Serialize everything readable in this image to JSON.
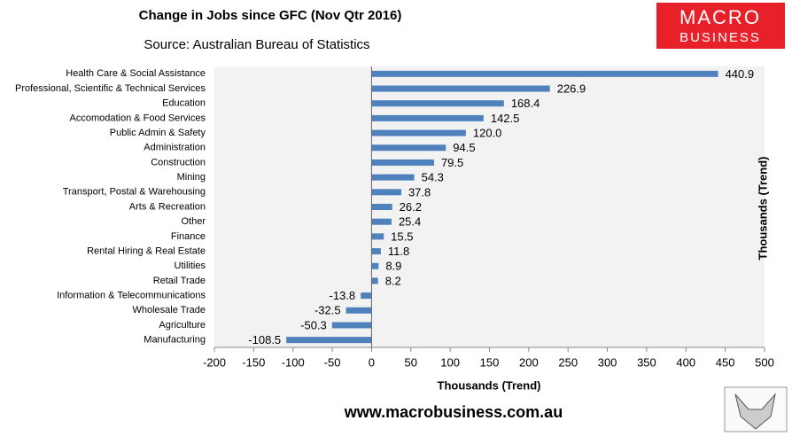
{
  "chart_data": {
    "type": "hbar",
    "title": "Change in Jobs since GFC (Nov Qtr 2016)",
    "subtitle": "Source: Australian Bureau of Statistics",
    "x_label": "Thousands (Trend)",
    "y_label": "Thousands (Trend)",
    "categories": [
      "Health Care & Social Assistance",
      "Professional, Scientific & Technical Services",
      "Education",
      "Accomodation & Food Services",
      "Public Admin & Safety",
      "Administration",
      "Construction",
      "Mining",
      "Transport, Postal & Warehousing",
      "Arts & Recreation",
      "Other",
      "Finance",
      "Rental Hiring & Real Estate",
      "Utilities",
      "Retail Trade",
      "Information & Telecommunications",
      "Wholesale Trade",
      "Agriculture",
      "Manufacturing"
    ],
    "values": [
      440.9,
      226.9,
      168.4,
      142.5,
      120.0,
      94.5,
      79.5,
      54.3,
      37.8,
      26.2,
      25.4,
      15.5,
      11.8,
      8.9,
      8.2,
      -13.8,
      -32.5,
      -50.3,
      -108.5
    ],
    "value_labels": [
      "440.9",
      "226.9",
      "168.4",
      "142.5",
      "120.0",
      "94.5",
      "79.5",
      "54.3",
      "37.8",
      "26.2",
      "25.4",
      "15.5",
      "11.8",
      "8.9",
      "8.2",
      "-13.8",
      "-32.5",
      "-50.3",
      "-108.5"
    ],
    "color": "#4f81bd",
    "xlim": [
      -200,
      500
    ],
    "xticks": [
      -200,
      -150,
      -100,
      -50,
      0,
      50,
      100,
      150,
      200,
      250,
      300,
      350,
      400,
      450,
      500
    ]
  },
  "logo": {
    "line1": "MACRO",
    "line2": "BUSINESS"
  },
  "footer": "www.macrobusiness.com.au"
}
